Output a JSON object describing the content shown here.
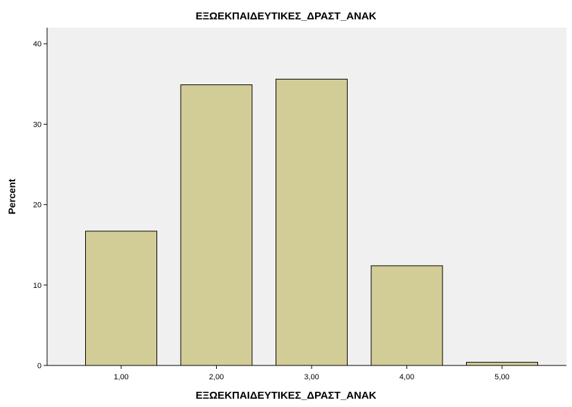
{
  "chart_data": {
    "type": "bar",
    "title": "ΕΞΩΕΚΠΑΙΔΕΥΤΙΚΕΣ_ΔΡΑΣΤ_ΑΝΑΚ",
    "xlabel": "ΕΞΩΕΚΠΑΙΔΕΥΤΙΚΕΣ_ΔΡΑΣΤ_ΑΝΑΚ",
    "ylabel": "Percent",
    "categories": [
      "1,00",
      "2,00",
      "3,00",
      "4,00",
      "5,00"
    ],
    "values": [
      16.7,
      34.9,
      35.6,
      12.4,
      0.4
    ],
    "ylim": [
      0,
      42
    ],
    "yticks": [
      0,
      10,
      20,
      30,
      40
    ],
    "grid": false,
    "colors": {
      "bar_fill": "#d2cc96",
      "bar_stroke": "#000000",
      "plot_background": "#f0f0f0"
    }
  }
}
